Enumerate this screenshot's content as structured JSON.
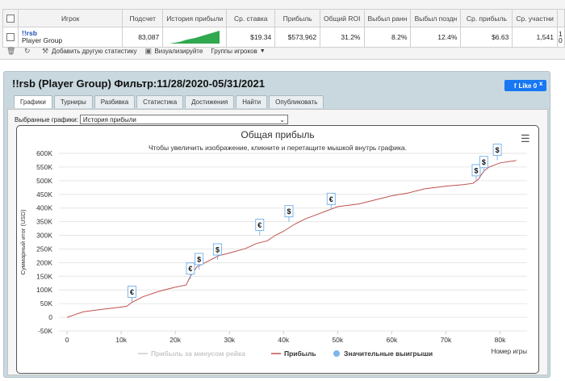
{
  "stats_table": {
    "headers": [
      "Игрок",
      "Подсчет",
      "История прибыли",
      "Ср. ставка",
      "Прибыль",
      "Общий ROI",
      "Выбыл ранн",
      "Выбыл поздн",
      "Ср. прибыль",
      "Ср. участни"
    ],
    "row": {
      "player_name": "!!rsb",
      "player_group": "Player Group",
      "count": "83,087",
      "avg_stake": "$19.34",
      "profit": "$573,962",
      "roi": "31.2%",
      "early_out": "8.2%",
      "late_out": "12.4%",
      "avg_profit": "$6.63",
      "avg_entrants": "1,541",
      "extra_a": "1",
      "extra_b": "0"
    }
  },
  "toolbar": {
    "trash_icon": "trash-icon",
    "refresh_icon": "refresh-icon",
    "add_stats": "Добавить другую статистику",
    "visualize": "Визуализируйте",
    "player_groups": "Группы игроков"
  },
  "panel": {
    "title": "!!rsb (Player Group) Фильтр:11/28/2020-05/31/2021",
    "like_label": "Like 0",
    "close_label": "x",
    "tabs": [
      "Графики",
      "Турниры",
      "Разбивка",
      "Статистика",
      "Достижения",
      "Найти",
      "Опубликовать"
    ],
    "active_tab": 0,
    "select_label": "Выбранные графики:",
    "select_value": "История прибыли"
  },
  "chart_data": {
    "type": "line",
    "title": "Общая прибыль",
    "subtitle": "Чтобы увеличить изображение, кликните и перетащите мышкой внутрь графика.",
    "xlabel": "Номер игры",
    "ylabel": "Суммарный итог (USD)",
    "x_ticks": [
      "0",
      "10k",
      "20k",
      "30k",
      "40k",
      "50k",
      "60k",
      "70k",
      "80k"
    ],
    "y_ticks": [
      "-50K",
      "0",
      "50K",
      "100K",
      "150K",
      "200K",
      "250K",
      "300K",
      "350K",
      "400K",
      "450K",
      "500K",
      "550K",
      "600K"
    ],
    "xlim": [
      -1500,
      85000
    ],
    "ylim": [
      -50000,
      600000
    ],
    "legend_placement": "bottom",
    "legend": [
      {
        "name": "Прибыль за минусом рейка",
        "color": "#cccccc"
      },
      {
        "name": "Прибыль",
        "color": "#c0504d"
      },
      {
        "name": "Значительные выигрыши",
        "color": "#7cb5ec"
      }
    ],
    "series": [
      {
        "name": "Прибыль",
        "x": [
          0,
          1500,
          3000,
          6000,
          9000,
          11000,
          12000,
          14000,
          17000,
          20000,
          22000,
          22800,
          24000,
          26000,
          28000,
          30000,
          33000,
          35000,
          37000,
          38500,
          40000,
          42000,
          44000,
          46000,
          48000,
          50000,
          54000,
          57000,
          60000,
          63000,
          66000,
          70000,
          73000,
          75000,
          76000,
          77000,
          78000,
          80000,
          83000
        ],
        "y": [
          0,
          10000,
          20000,
          28000,
          35000,
          40000,
          55000,
          75000,
          95000,
          110000,
          118000,
          150000,
          185000,
          205000,
          225000,
          235000,
          252000,
          270000,
          280000,
          300000,
          315000,
          340000,
          360000,
          375000,
          390000,
          405000,
          415000,
          430000,
          445000,
          455000,
          470000,
          480000,
          485000,
          490000,
          505000,
          535000,
          550000,
          565000,
          574000
        ]
      }
    ],
    "markers": [
      {
        "x": 12000,
        "y": 55000,
        "label": "€"
      },
      {
        "x": 22800,
        "y": 140000,
        "label": "€"
      },
      {
        "x": 24400,
        "y": 175000,
        "label": "$"
      },
      {
        "x": 27800,
        "y": 210000,
        "label": "$"
      },
      {
        "x": 35600,
        "y": 300000,
        "label": "€"
      },
      {
        "x": 41000,
        "y": 350000,
        "label": "$"
      },
      {
        "x": 48800,
        "y": 395000,
        "label": "€"
      },
      {
        "x": 75600,
        "y": 500000,
        "label": "$"
      },
      {
        "x": 77000,
        "y": 530000,
        "label": "$"
      },
      {
        "x": 79500,
        "y": 575000,
        "label": "$"
      }
    ]
  }
}
